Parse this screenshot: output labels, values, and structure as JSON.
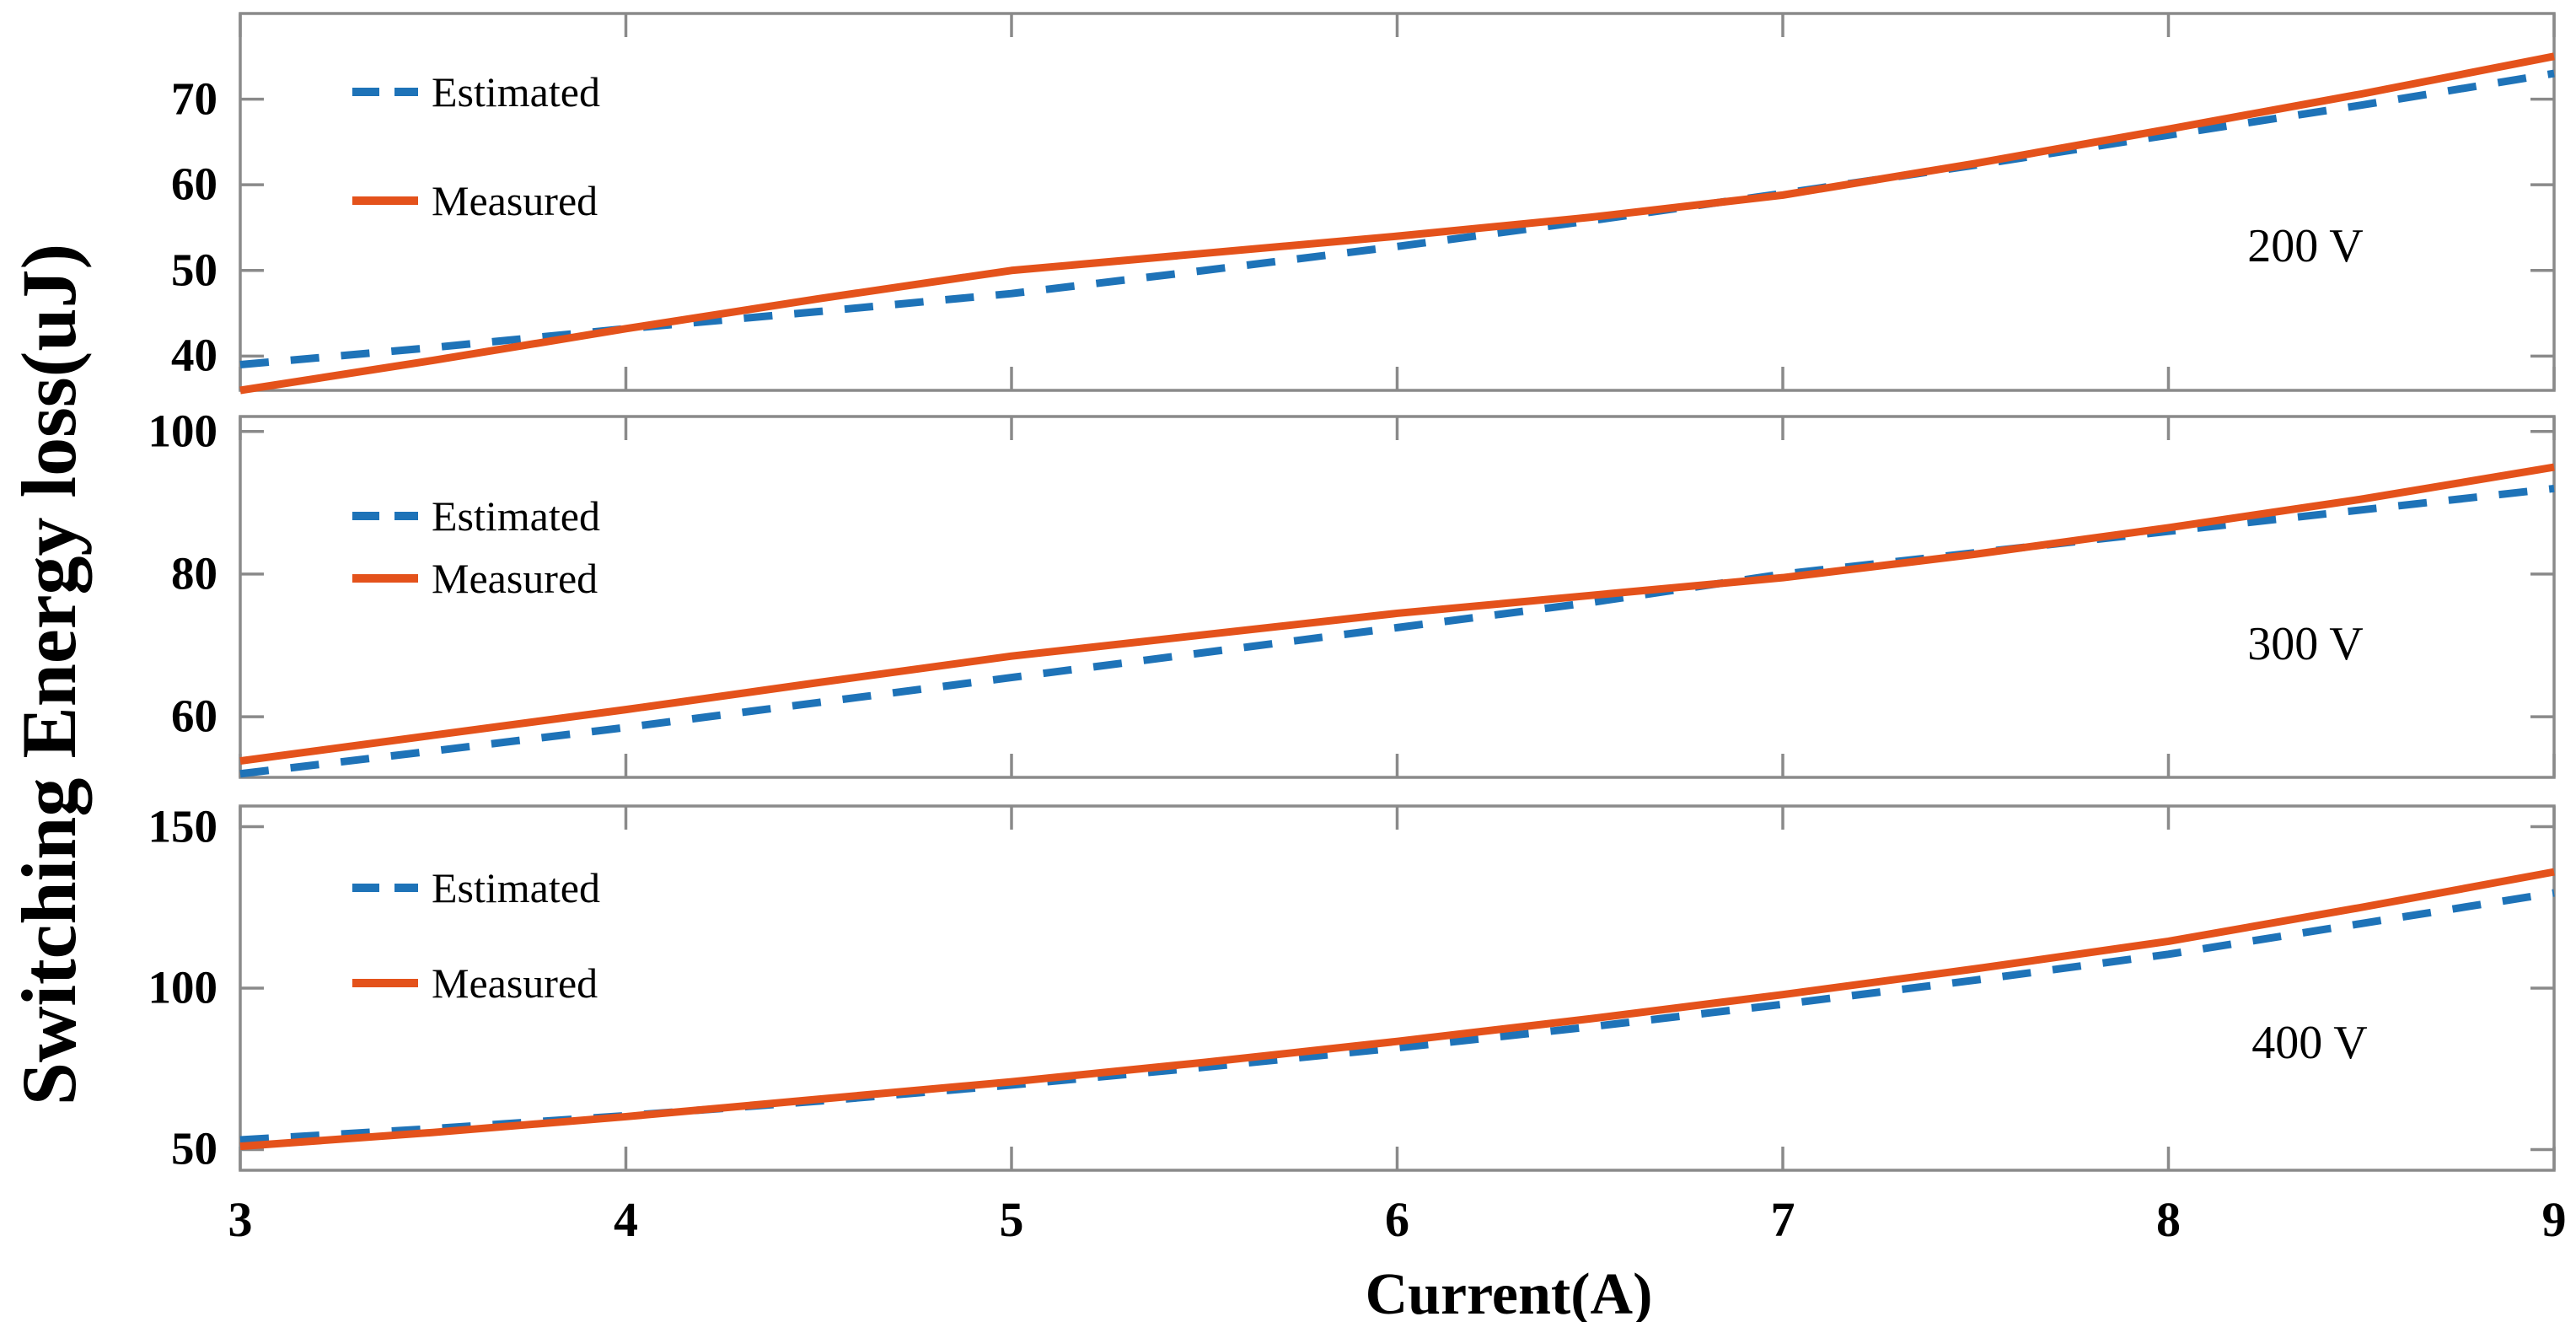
{
  "figure": {
    "ylabel": "Switching Energy loss(uJ)",
    "xlabel": "Current(A)",
    "colors": {
      "estimated": "#1e73b8",
      "measured": "#e4521b",
      "axis": "#8a8a8a",
      "text": "#000000",
      "background": "#ffffff"
    }
  },
  "chart_data": [
    {
      "type": "line",
      "title": "200 V",
      "xlabel": "Current(A)",
      "ylabel": "Switching Energy loss(uJ)",
      "xlim": [
        3,
        9
      ],
      "xticks": [
        3,
        4,
        5,
        6,
        7,
        8,
        9
      ],
      "ylim": [
        36,
        80
      ],
      "yticks": [
        40,
        50,
        60,
        70
      ],
      "grid": false,
      "legend_position": "upper-left",
      "show_xtick_labels": false,
      "x": [
        3,
        3.5,
        4,
        4.5,
        5,
        5.5,
        6,
        6.5,
        7,
        7.5,
        8,
        8.5,
        9
      ],
      "series": [
        {
          "name": "Estimated",
          "style": "dashed",
          "color_key": "estimated",
          "values": [
            39,
            41,
            43.2,
            45.2,
            47.3,
            50,
            52.8,
            55.8,
            59,
            62.3,
            65.8,
            69.3,
            73
          ]
        },
        {
          "name": "Measured",
          "style": "solid",
          "color_key": "measured",
          "values": [
            36,
            39.5,
            43.2,
            46.7,
            50,
            52,
            54,
            56.2,
            58.8,
            62.5,
            66.5,
            70.6,
            75
          ]
        }
      ]
    },
    {
      "type": "line",
      "title": "300 V",
      "xlabel": "Current(A)",
      "ylabel": "Switching Energy loss(uJ)",
      "xlim": [
        3,
        9
      ],
      "xticks": [
        3,
        4,
        5,
        6,
        7,
        8,
        9
      ],
      "ylim": [
        51.5,
        102.1
      ],
      "yticks": [
        60,
        80,
        100
      ],
      "grid": false,
      "legend_position": "upper-left",
      "show_xtick_labels": false,
      "x": [
        3,
        3.5,
        4,
        4.5,
        5,
        5.5,
        6,
        6.5,
        7,
        7.5,
        8,
        8.5,
        9
      ],
      "series": [
        {
          "name": "Estimated",
          "style": "dashed",
          "color_key": "estimated",
          "values": [
            52,
            55.2,
            58.5,
            62,
            65.5,
            69,
            72.5,
            76,
            80,
            83,
            86,
            89,
            92
          ]
        },
        {
          "name": "Measured",
          "style": "solid",
          "color_key": "measured",
          "values": [
            53.8,
            57.4,
            61,
            64.8,
            68.5,
            71.5,
            74.5,
            77,
            79.5,
            82.8,
            86.5,
            90.5,
            95
          ]
        }
      ]
    },
    {
      "type": "line",
      "title": "400 V",
      "xlabel": "Current(A)",
      "ylabel": "Switching Energy loss(uJ)",
      "xlim": [
        3,
        9
      ],
      "xticks": [
        3,
        4,
        5,
        6,
        7,
        8,
        9
      ],
      "ylim": [
        43.6,
        156.4
      ],
      "yticks": [
        50,
        100,
        150
      ],
      "grid": false,
      "legend_position": "upper-left",
      "show_xtick_labels": true,
      "x": [
        3,
        3.5,
        4,
        4.5,
        5,
        5.5,
        6,
        6.5,
        7,
        7.5,
        8,
        8.5,
        9
      ],
      "series": [
        {
          "name": "Estimated",
          "style": "dashed",
          "color_key": "estimated",
          "values": [
            53,
            56.5,
            60.5,
            65,
            70,
            75.5,
            81.5,
            88,
            95,
            102.5,
            110.5,
            120,
            129.5
          ]
        },
        {
          "name": "Measured",
          "style": "solid",
          "color_key": "measured",
          "values": [
            51,
            55.3,
            60.2,
            65.6,
            71,
            77,
            83.5,
            90.5,
            98,
            106,
            114.5,
            125,
            136
          ]
        }
      ]
    }
  ]
}
